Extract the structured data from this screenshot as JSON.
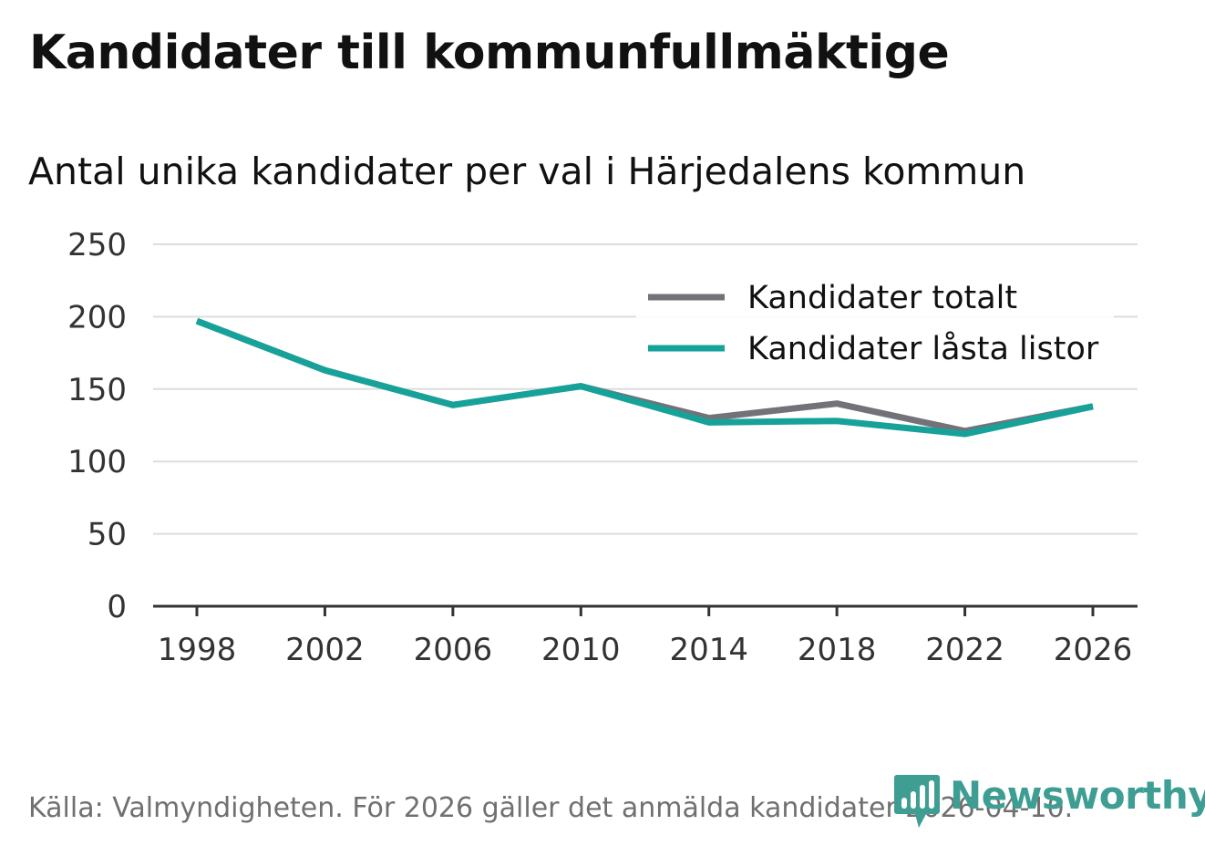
{
  "header": {
    "title": "Kandidater till kommunfullmäktige",
    "subtitle": "Antal unika kandidater per val i Härjedalens kommun"
  },
  "footer": {
    "source": "Källa: Valmyndigheten. För 2026 gäller det anmälda kandidater 2026-04-10.",
    "logo_text": "Newsworthy"
  },
  "colors": {
    "total": "#737279",
    "locked": "#16a299",
    "grid": "#dddddd",
    "axis": "#333333",
    "brand": "#3e9e93"
  },
  "chart_data": {
    "type": "line",
    "title": "Kandidater till kommunfullmäktige",
    "subtitle": "Antal unika kandidater per val i Härjedalens kommun",
    "xlabel": "",
    "ylabel": "",
    "ylim": [
      0,
      250
    ],
    "yticks": [
      0,
      50,
      100,
      150,
      200,
      250
    ],
    "x": [
      1998,
      2002,
      2006,
      2010,
      2014,
      2018,
      2022,
      2026
    ],
    "legend_position": "top-right",
    "series": [
      {
        "key": "total",
        "name": "Kandidater totalt",
        "values": [
          197,
          163,
          139,
          152,
          130,
          140,
          121,
          138
        ]
      },
      {
        "key": "locked",
        "name": "Kandidater låsta listor",
        "values": [
          197,
          163,
          139,
          152,
          127,
          128,
          119,
          138
        ]
      }
    ]
  }
}
